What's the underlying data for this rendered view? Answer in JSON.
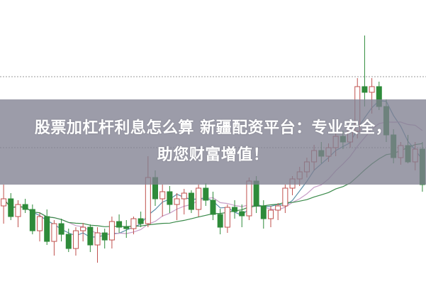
{
  "title_line1": "股票加杠杆利息怎么算 新疆配资平台：专业安全，",
  "title_line2": "助您财富增值！",
  "colors": {
    "up": "#c0504d",
    "down": "#2e8b3a",
    "ma_short": "#5b8fa8",
    "ma_mid": "#c89fc8",
    "ma_long": "#3a8a4a",
    "banner": "#80808f"
  },
  "chart_data": {
    "type": "candlestick",
    "candles": [
      [
        110,
        140,
        85,
        120
      ],
      [
        120,
        128,
        90,
        95
      ],
      [
        95,
        118,
        80,
        112
      ],
      [
        112,
        120,
        100,
        105
      ],
      [
        105,
        112,
        70,
        75
      ],
      [
        75,
        100,
        60,
        95
      ],
      [
        95,
        105,
        55,
        60
      ],
      [
        60,
        90,
        40,
        85
      ],
      [
        85,
        92,
        60,
        70
      ],
      [
        70,
        78,
        45,
        50
      ],
      [
        50,
        80,
        40,
        75
      ],
      [
        75,
        86,
        60,
        80
      ],
      [
        80,
        84,
        45,
        55
      ],
      [
        55,
        80,
        30,
        72
      ],
      [
        72,
        78,
        50,
        62
      ],
      [
        62,
        95,
        50,
        88
      ],
      [
        88,
        98,
        72,
        80
      ],
      [
        80,
        90,
        65,
        78
      ],
      [
        78,
        95,
        70,
        92
      ],
      [
        92,
        102,
        80,
        85
      ],
      [
        85,
        180,
        80,
        150
      ],
      [
        150,
        160,
        110,
        120
      ],
      [
        120,
        140,
        95,
        130
      ],
      [
        130,
        138,
        100,
        112
      ],
      [
        112,
        128,
        90,
        120
      ],
      [
        120,
        134,
        98,
        128
      ],
      [
        128,
        132,
        100,
        105
      ],
      [
        105,
        140,
        95,
        135
      ],
      [
        135,
        142,
        110,
        118
      ],
      [
        118,
        130,
        90,
        98
      ],
      [
        98,
        106,
        70,
        80
      ],
      [
        80,
        112,
        72,
        108
      ],
      [
        108,
        118,
        92,
        102
      ],
      [
        102,
        112,
        80,
        96
      ],
      [
        96,
        150,
        90,
        145
      ],
      [
        145,
        152,
        100,
        110
      ],
      [
        110,
        118,
        78,
        92
      ],
      [
        92,
        110,
        80,
        104
      ],
      [
        104,
        114,
        90,
        110
      ],
      [
        110,
        140,
        100,
        135
      ],
      [
        135,
        152,
        125,
        148
      ],
      [
        148,
        165,
        138,
        158
      ],
      [
        158,
        178,
        150,
        172
      ],
      [
        172,
        196,
        160,
        188
      ],
      [
        188,
        200,
        170,
        180
      ],
      [
        180,
        198,
        172,
        192
      ],
      [
        192,
        215,
        180,
        208
      ],
      [
        208,
        216,
        190,
        200
      ],
      [
        200,
        220,
        192,
        215
      ],
      [
        215,
        290,
        205,
        278
      ],
      [
        278,
        350,
        250,
        270
      ],
      [
        270,
        290,
        240,
        278
      ],
      [
        278,
        285,
        245,
        250
      ],
      [
        250,
        260,
        200,
        210
      ],
      [
        210,
        218,
        170,
        178
      ],
      [
        178,
        200,
        168,
        195
      ],
      [
        195,
        210,
        170,
        172
      ],
      [
        172,
        200,
        160,
        190
      ],
      [
        190,
        200,
        130,
        140
      ]
    ]
  }
}
